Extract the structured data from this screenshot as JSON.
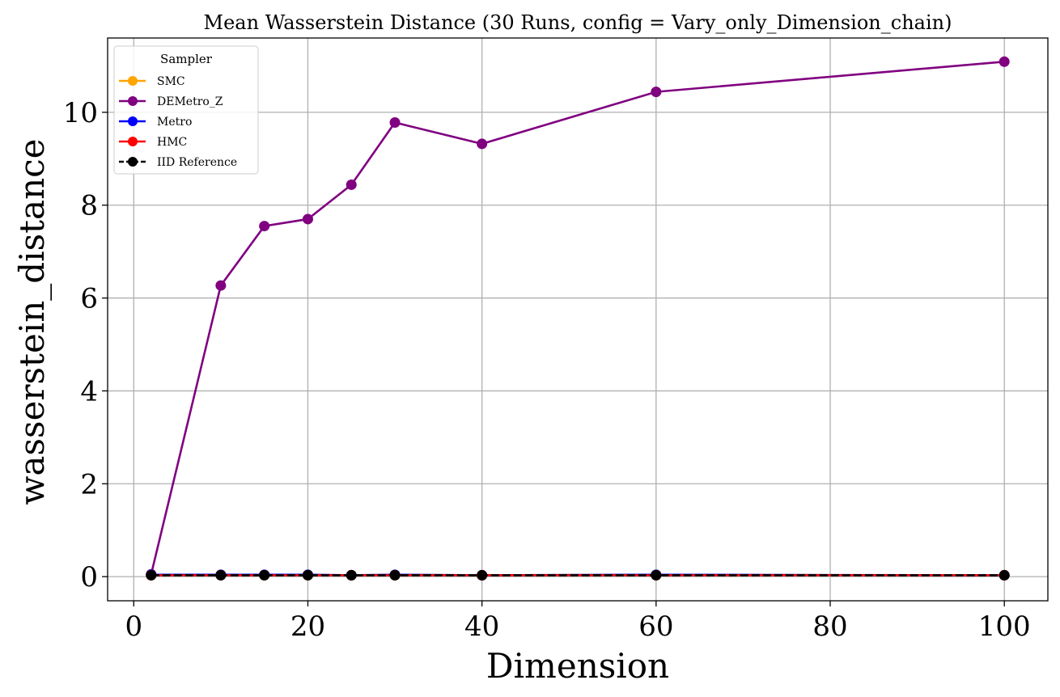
{
  "chart_data": {
    "type": "line",
    "title": "Mean Wasserstein Distance (30 Runs, config = Vary_only_Dimension_chain)",
    "xlabel": "Dimension",
    "ylabel": "wasserstein_distance",
    "xlim": [
      -3,
      105
    ],
    "ylim": [
      -0.52,
      11.6
    ],
    "xticks": [
      0,
      20,
      40,
      60,
      80,
      100
    ],
    "yticks": [
      0,
      2,
      4,
      6,
      8,
      10
    ],
    "grid": true,
    "legend": {
      "title": "Sampler",
      "placement": "top-left"
    },
    "x": [
      2,
      10,
      15,
      20,
      25,
      30,
      40,
      60,
      100
    ],
    "series": [
      {
        "name": "SMC",
        "color": "#ffa500",
        "dash": "solid",
        "values": [
          0.04,
          0.04,
          0.04,
          0.04,
          0.03,
          0.04,
          0.03,
          0.04,
          0.03
        ]
      },
      {
        "name": "DEMetro_Z",
        "color": "#800080",
        "dash": "solid",
        "values": [
          0.05,
          6.27,
          7.55,
          7.7,
          8.44,
          9.78,
          9.32,
          10.44,
          11.09
        ]
      },
      {
        "name": "Metro",
        "color": "#0000ff",
        "dash": "solid",
        "values": [
          0.04,
          0.04,
          0.04,
          0.04,
          0.03,
          0.04,
          0.03,
          0.04,
          0.03
        ]
      },
      {
        "name": "HMC",
        "color": "#ff0000",
        "dash": "solid",
        "values": [
          0.03,
          0.03,
          0.03,
          0.03,
          0.03,
          0.03,
          0.03,
          0.03,
          0.03
        ]
      },
      {
        "name": "IID Reference",
        "color": "#000000",
        "dash": "dashed",
        "values": [
          0.03,
          0.03,
          0.03,
          0.03,
          0.03,
          0.03,
          0.03,
          0.03,
          0.03
        ]
      }
    ]
  }
}
